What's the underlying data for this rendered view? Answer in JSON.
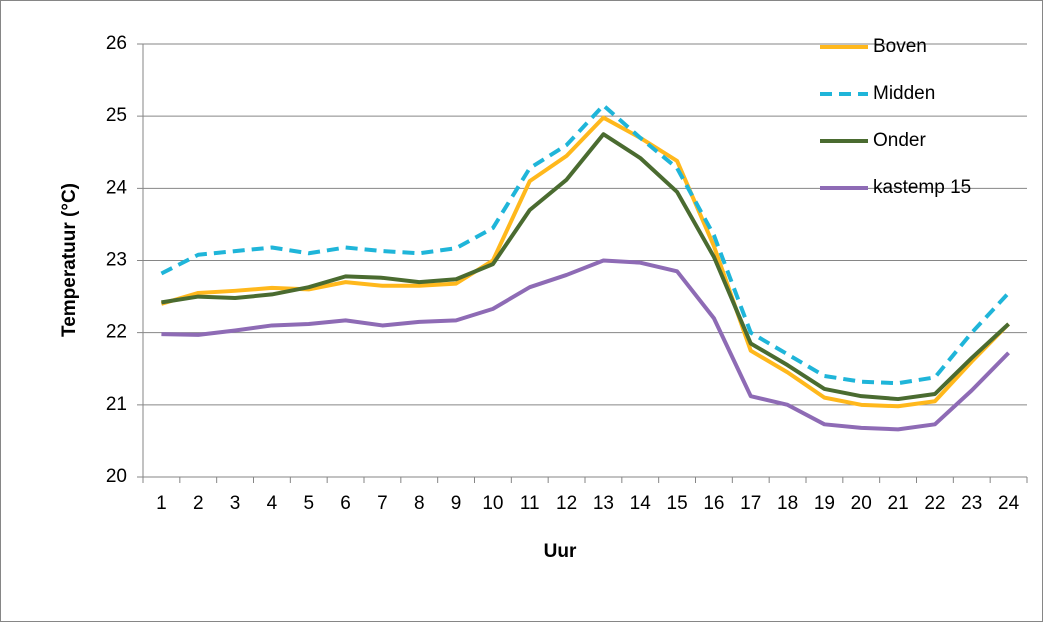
{
  "chart_data": {
    "type": "line",
    "x_label": "Uur",
    "y_label": "Temperatuur (°C)",
    "categories": [
      "1",
      "2",
      "3",
      "4",
      "5",
      "6",
      "7",
      "8",
      "9",
      "10",
      "11",
      "12",
      "13",
      "14",
      "15",
      "16",
      "17",
      "18",
      "19",
      "20",
      "21",
      "22",
      "23",
      "24"
    ],
    "ylim": [
      20,
      26
    ],
    "yticks": [
      20,
      21,
      22,
      23,
      24,
      25,
      26
    ],
    "grid": true,
    "legend": "right",
    "series": [
      {
        "name": "Boven",
        "color": "#ffb81c",
        "dashed": false,
        "values": [
          22.4,
          22.55,
          22.58,
          22.62,
          22.6,
          22.7,
          22.65,
          22.65,
          22.68,
          23.0,
          24.1,
          24.45,
          24.98,
          24.7,
          24.38,
          23.2,
          21.75,
          21.45,
          21.1,
          21.0,
          20.98,
          21.05,
          21.6,
          22.12
        ]
      },
      {
        "name": "Midden",
        "color": "#1fb5d9",
        "dashed": true,
        "values": [
          22.82,
          23.08,
          23.13,
          23.18,
          23.1,
          23.18,
          23.13,
          23.1,
          23.17,
          23.45,
          24.28,
          24.6,
          25.15,
          24.7,
          24.28,
          23.35,
          22.0,
          21.7,
          21.4,
          21.32,
          21.3,
          21.38,
          22.0,
          22.55
        ]
      },
      {
        "name": "Onder",
        "color": "#4a6b30",
        "dashed": false,
        "values": [
          22.42,
          22.5,
          22.48,
          22.53,
          22.63,
          22.78,
          22.76,
          22.7,
          22.74,
          22.95,
          23.7,
          24.12,
          24.75,
          24.42,
          23.95,
          23.05,
          21.85,
          21.55,
          21.22,
          21.12,
          21.08,
          21.15,
          21.65,
          22.12
        ]
      },
      {
        "name": "kastemp 15",
        "color": "#8e6bb5",
        "dashed": false,
        "values": [
          21.98,
          21.97,
          22.03,
          22.1,
          22.12,
          22.17,
          22.1,
          22.15,
          22.17,
          22.33,
          22.63,
          22.8,
          23.0,
          22.97,
          22.85,
          22.2,
          21.12,
          21.0,
          20.73,
          20.68,
          20.66,
          20.73,
          21.2,
          21.72
        ]
      }
    ]
  }
}
